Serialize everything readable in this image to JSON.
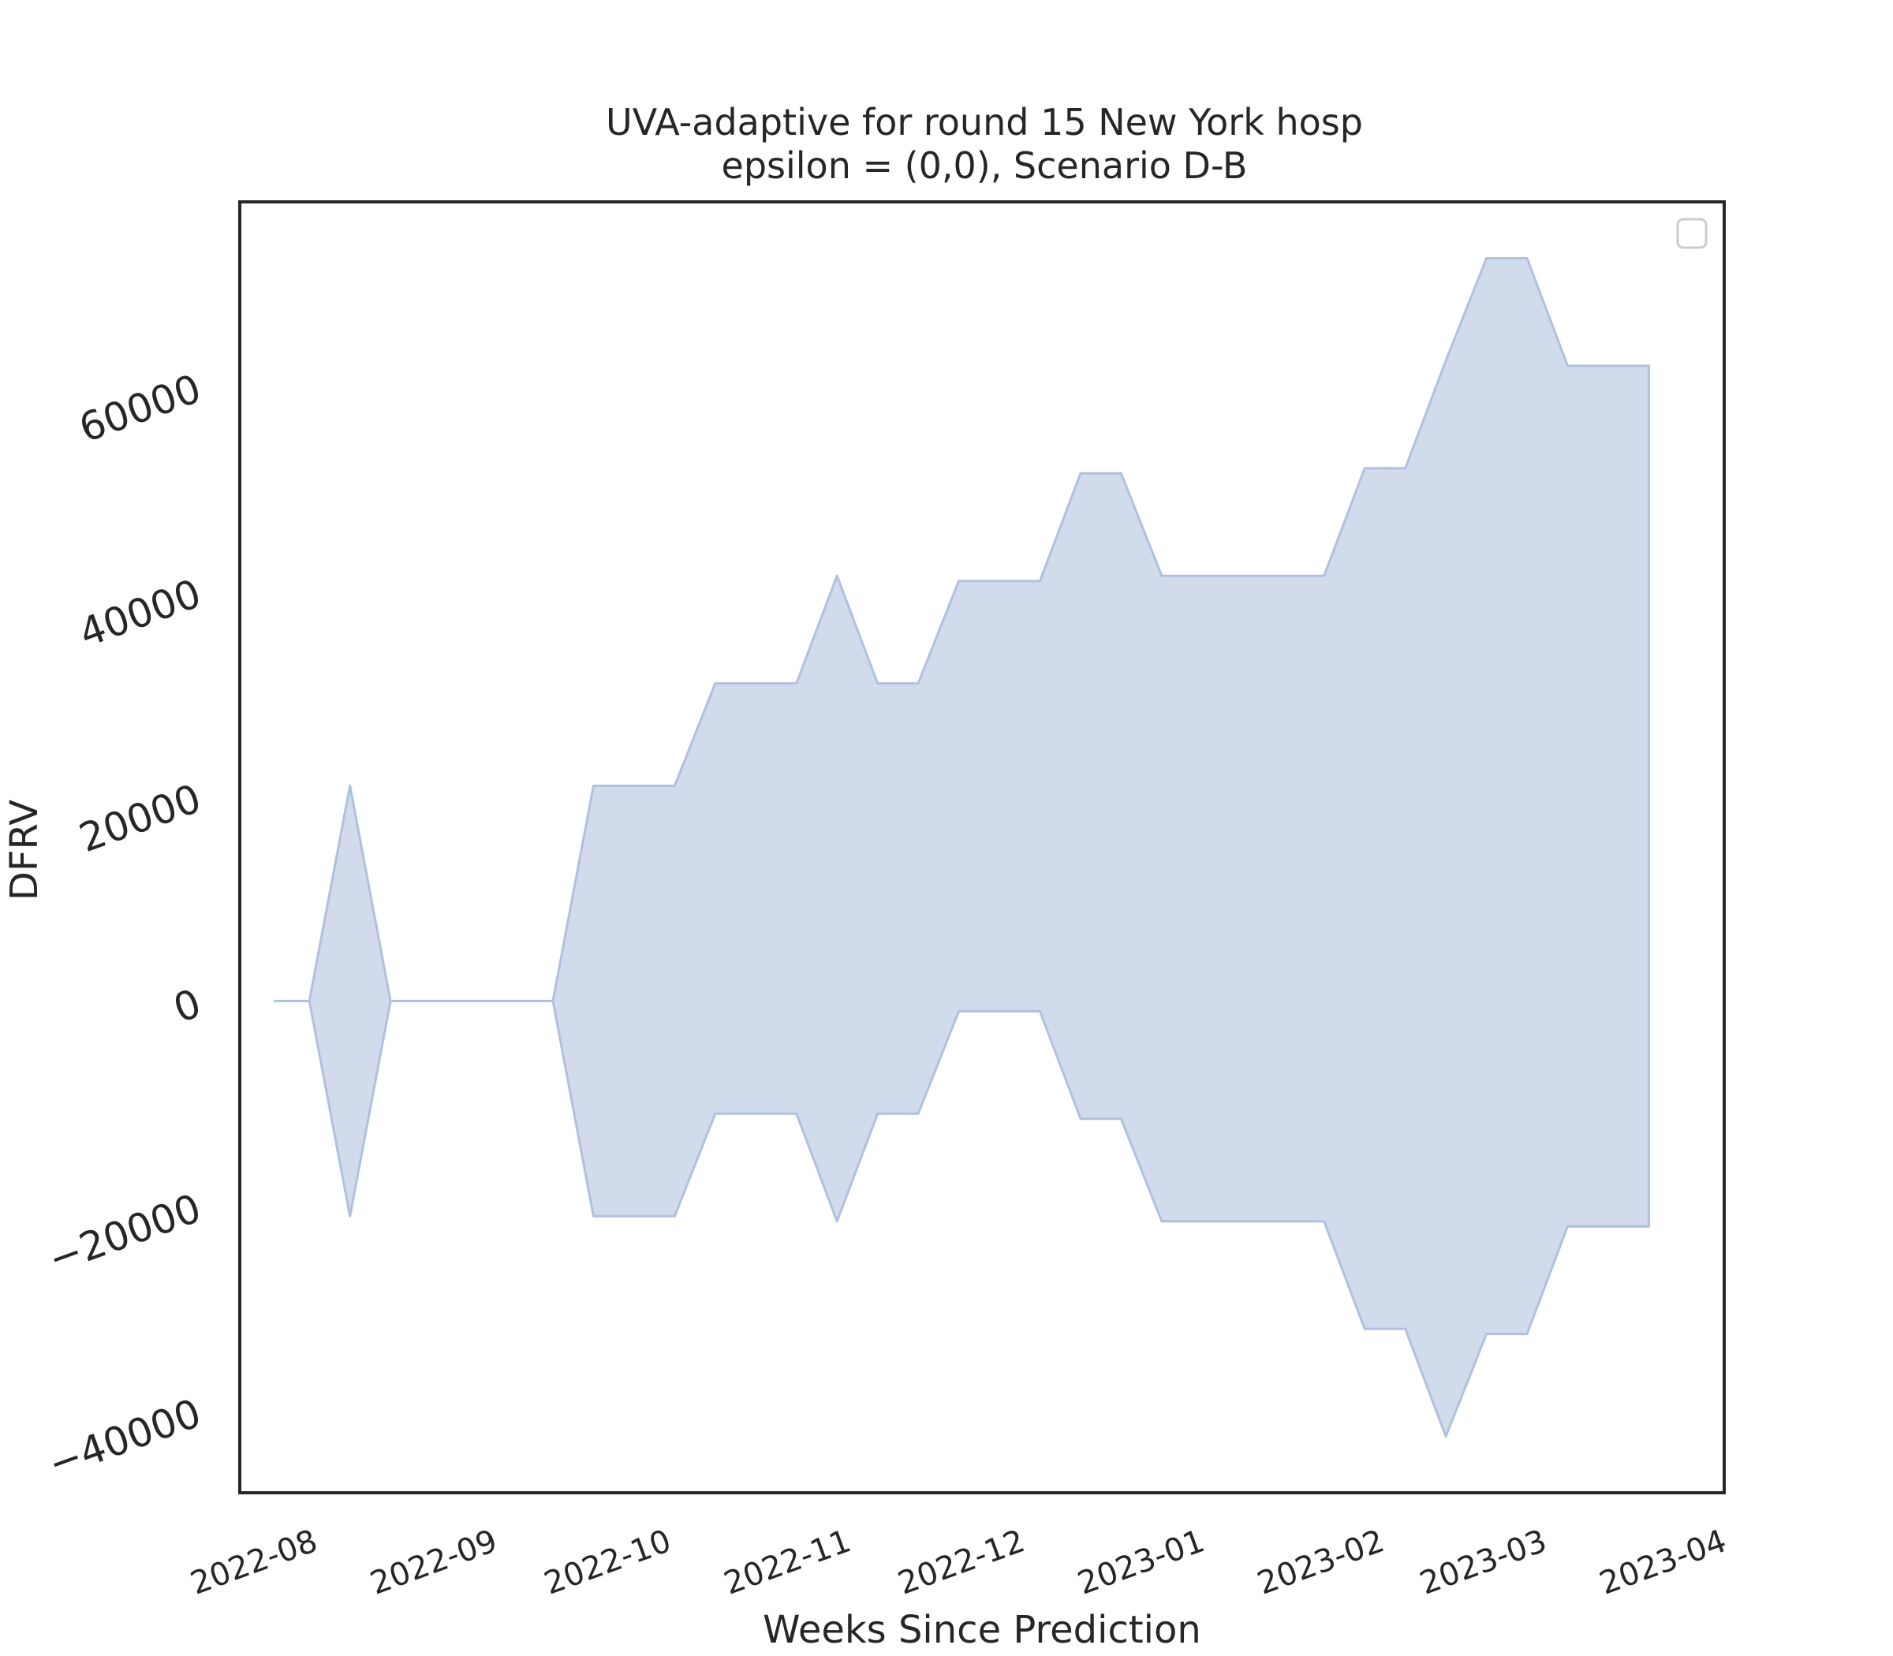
{
  "chart_data": {
    "type": "area",
    "title": "UVA-adaptive for round 15 New York hosp",
    "subtitle": "epsilon = (0,0), Scenario D-B",
    "xlabel": "Weeks Since Prediction",
    "ylabel": "DFRV",
    "x_ticks": [
      "2022-08",
      "2022-09",
      "2022-10",
      "2022-11",
      "2022-12",
      "2023-01",
      "2023-02",
      "2023-03",
      "2023-04"
    ],
    "y_ticks": [
      -40000,
      -20000,
      0,
      20000,
      40000,
      60000
    ],
    "y_tick_labels": [
      "−40000",
      "−20000",
      "0",
      "20000",
      "40000",
      "60000"
    ],
    "xlim": [
      "2022-07-19",
      "2023-04-01"
    ],
    "ylim": [
      -48000,
      78000
    ],
    "grid": false,
    "legend": {
      "placement": "top-right",
      "entries": []
    },
    "fill_color": "#b0c1de",
    "series": [
      {
        "x": [
          "2022-07-25",
          "2022-07-31",
          "2022-08-07",
          "2022-08-14",
          "2022-08-21",
          "2022-08-28",
          "2022-09-04",
          "2022-09-11",
          "2022-09-18",
          "2022-09-25",
          "2022-10-02",
          "2022-10-09",
          "2022-10-16",
          "2022-10-23",
          "2022-10-30",
          "2022-11-06",
          "2022-11-13",
          "2022-11-20",
          "2022-11-27",
          "2022-12-04",
          "2022-12-11",
          "2022-12-18",
          "2022-12-25",
          "2023-01-01",
          "2023-01-08",
          "2023-01-15",
          "2023-01-22",
          "2023-01-29",
          "2023-02-05",
          "2023-02-12",
          "2023-02-19",
          "2023-02-26",
          "2023-03-05",
          "2023-03-12",
          "2023-03-19"
        ],
        "lower": [
          0,
          0,
          -21000,
          0,
          0,
          0,
          0,
          0,
          -21000,
          -21000,
          -21000,
          -11000,
          -11000,
          -11000,
          -21500,
          -11000,
          -11000,
          -1000,
          -1000,
          -1000,
          -11500,
          -11500,
          -21500,
          -21500,
          -21500,
          -21500,
          -21500,
          -32000,
          -32000,
          -42500,
          -32500,
          -32500,
          -22000,
          -22000,
          -22000
        ],
        "upper": [
          0,
          0,
          21000,
          0,
          0,
          0,
          0,
          0,
          21000,
          21000,
          21000,
          31000,
          31000,
          31000,
          41500,
          31000,
          31000,
          41000,
          41000,
          41000,
          51500,
          51500,
          41500,
          41500,
          41500,
          41500,
          41500,
          52000,
          52000,
          62500,
          72500,
          72500,
          62000,
          62000,
          62000
        ]
      }
    ]
  }
}
